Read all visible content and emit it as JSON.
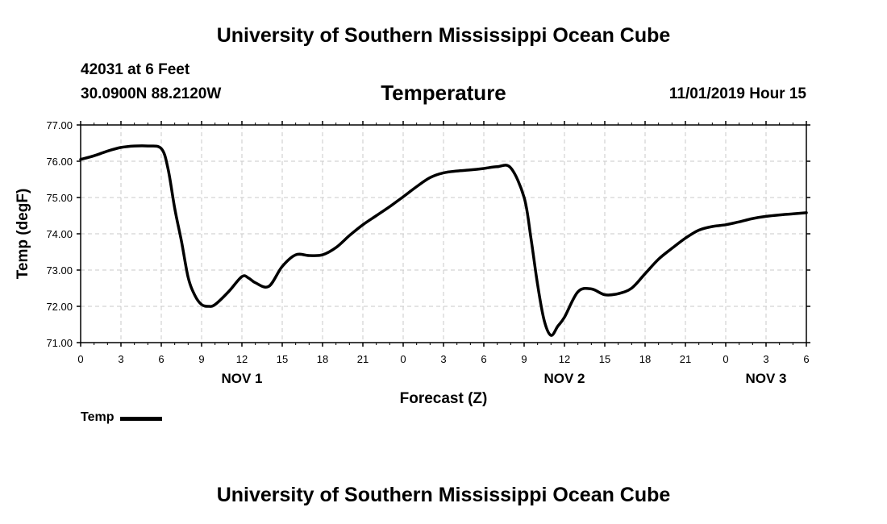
{
  "header": {
    "title": "University of Southern Mississippi Ocean Cube",
    "station": "42031 at 6 Feet",
    "coordinates": "30.0900N 88.2120W",
    "variable": "Temperature",
    "datetime": "11/01/2019 Hour 15"
  },
  "footer": {
    "title": "University of Southern Mississippi Ocean Cube"
  },
  "legend": {
    "label": "Temp",
    "color": "#000000"
  },
  "chart_data": {
    "type": "line",
    "title": "Temperature",
    "xlabel": "Forecast (Z)",
    "ylabel": "Temp (degF)",
    "ylim": [
      71.0,
      77.0
    ],
    "xlim": [
      0,
      54
    ],
    "grid": true,
    "yticks": [
      "71.00",
      "72.00",
      "73.00",
      "74.00",
      "75.00",
      "76.00",
      "77.00"
    ],
    "xticks": [
      "0",
      "3",
      "6",
      "9",
      "12",
      "15",
      "18",
      "21",
      "0",
      "3",
      "6",
      "9",
      "12",
      "15",
      "18",
      "21",
      "0",
      "3",
      "6"
    ],
    "day_labels": [
      {
        "label": "NOV 1",
        "at": 12
      },
      {
        "label": "NOV 2",
        "at": 36
      },
      {
        "label": "NOV 3",
        "at": 51
      }
    ],
    "series": [
      {
        "name": "Temp",
        "x": [
          0,
          1,
          2,
          3,
          4,
          5,
          6,
          6.5,
          7,
          7.5,
          8,
          8.5,
          9,
          9.5,
          10,
          11,
          12,
          12.5,
          13,
          14,
          15,
          16,
          17,
          18,
          19,
          20,
          21,
          22,
          23,
          24,
          25,
          26,
          27,
          28,
          29,
          30,
          31,
          32,
          33,
          33.5,
          34,
          34.5,
          35,
          35.5,
          36,
          37,
          38,
          39,
          40,
          41,
          42,
          43,
          44,
          45,
          46,
          47,
          48,
          49,
          50,
          51,
          52,
          53,
          54
        ],
        "values": [
          76.05,
          76.15,
          76.28,
          76.38,
          76.42,
          76.42,
          76.35,
          75.8,
          74.7,
          73.8,
          72.8,
          72.3,
          72.05,
          72.0,
          72.05,
          72.4,
          72.82,
          72.78,
          72.65,
          72.55,
          73.1,
          73.42,
          73.4,
          73.42,
          73.62,
          73.95,
          74.25,
          74.5,
          74.75,
          75.02,
          75.3,
          75.55,
          75.68,
          75.73,
          75.76,
          75.8,
          75.85,
          75.82,
          75.0,
          73.9,
          72.6,
          71.6,
          71.2,
          71.45,
          71.7,
          72.4,
          72.48,
          72.32,
          72.35,
          72.5,
          72.9,
          73.3,
          73.6,
          73.88,
          74.1,
          74.2,
          74.25,
          74.33,
          74.42,
          74.48,
          74.52,
          74.55,
          74.58
        ]
      }
    ]
  }
}
